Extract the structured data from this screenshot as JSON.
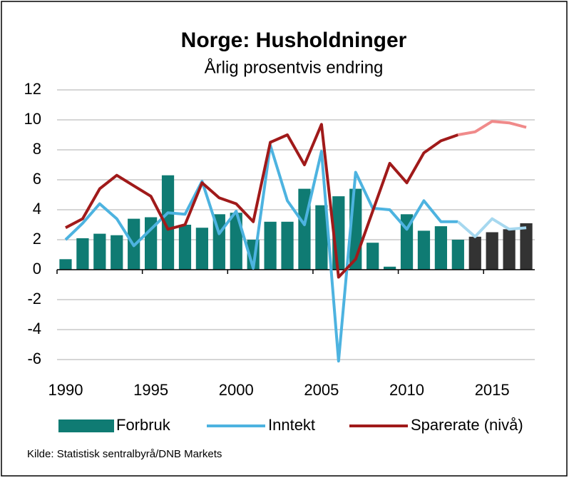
{
  "chart_data": {
    "type": "bar_line",
    "title": "Norge: Husholdninger",
    "subtitle": "Årlig prosentvis endring",
    "source": "Kilde: Statistisk sentralbyrå/DNB  Markets",
    "x": [
      1990,
      1991,
      1992,
      1993,
      1994,
      1995,
      1996,
      1997,
      1998,
      1999,
      2000,
      2001,
      2002,
      2003,
      2004,
      2005,
      2006,
      2007,
      2008,
      2009,
      2010,
      2011,
      2012,
      2013,
      2014,
      2015,
      2016,
      2017
    ],
    "xticks": [
      1990,
      1995,
      2000,
      2005,
      2010,
      2015
    ],
    "ylim": [
      -6,
      12
    ],
    "yticks": [
      -6,
      -4,
      -2,
      0,
      2,
      4,
      6,
      8,
      10,
      12
    ],
    "grid": true,
    "legend": "bottom",
    "series": [
      {
        "name": "Forbruk",
        "kind": "bar",
        "color": "#0f7b73",
        "colors": [
          "#0f7b73",
          "#0f7b73",
          "#0f7b73",
          "#0f7b73",
          "#0f7b73",
          "#0f7b73",
          "#0f7b73",
          "#0f7b73",
          "#0f7b73",
          "#0f7b73",
          "#0f7b73",
          "#0f7b73",
          "#0f7b73",
          "#0f7b73",
          "#0f7b73",
          "#0f7b73",
          "#0f7b73",
          "#0f7b73",
          "#0f7b73",
          "#0f7b73",
          "#0f7b73",
          "#0f7b73",
          "#0f7b73",
          "#0f7b73",
          "#333333",
          "#333333",
          "#333333",
          "#333333"
        ],
        "values": [
          0.7,
          2.1,
          2.4,
          2.3,
          3.4,
          3.5,
          6.3,
          3.0,
          2.8,
          3.7,
          3.8,
          2.0,
          3.2,
          3.2,
          5.4,
          4.3,
          4.9,
          5.4,
          1.8,
          0.2,
          3.7,
          2.6,
          2.9,
          2.0,
          2.2,
          2.5,
          2.7,
          3.1
        ]
      },
      {
        "name": "Inntekt",
        "kind": "line",
        "color": "#4db3e0",
        "colors": [
          "#4db3e0",
          "#4db3e0",
          "#4db3e0",
          "#4db3e0",
          "#4db3e0",
          "#4db3e0",
          "#4db3e0",
          "#4db3e0",
          "#4db3e0",
          "#4db3e0",
          "#4db3e0",
          "#4db3e0",
          "#4db3e0",
          "#4db3e0",
          "#4db3e0",
          "#4db3e0",
          "#4db3e0",
          "#4db3e0",
          "#4db3e0",
          "#4db3e0",
          "#4db3e0",
          "#4db3e0",
          "#4db3e0",
          "#4db3e0",
          "#a6d8ef",
          "#a6d8ef",
          "#a6d8ef",
          "#a6d8ef"
        ],
        "values": [
          2.0,
          3.1,
          4.4,
          3.4,
          1.6,
          2.7,
          3.8,
          3.7,
          5.9,
          2.4,
          3.9,
          0.1,
          8.3,
          4.6,
          3.0,
          7.9,
          -6.1,
          6.5,
          4.1,
          4.0,
          2.7,
          4.6,
          3.2,
          3.2,
          2.2,
          3.4,
          2.7,
          2.8
        ]
      },
      {
        "name": "Sparerate (nivå)",
        "kind": "line",
        "color": "#a01a1a",
        "colors": [
          "#a01a1a",
          "#a01a1a",
          "#a01a1a",
          "#a01a1a",
          "#a01a1a",
          "#a01a1a",
          "#a01a1a",
          "#a01a1a",
          "#a01a1a",
          "#a01a1a",
          "#a01a1a",
          "#a01a1a",
          "#a01a1a",
          "#a01a1a",
          "#a01a1a",
          "#a01a1a",
          "#a01a1a",
          "#a01a1a",
          "#a01a1a",
          "#a01a1a",
          "#a01a1a",
          "#a01a1a",
          "#a01a1a",
          "#a01a1a",
          "#f08a8a",
          "#f08a8a",
          "#f08a8a",
          "#f08a8a"
        ],
        "values": [
          2.8,
          3.4,
          5.4,
          6.3,
          5.6,
          4.9,
          2.7,
          3.0,
          5.8,
          4.8,
          4.4,
          3.2,
          8.5,
          9.0,
          7.0,
          9.7,
          -0.5,
          0.7,
          3.9,
          7.1,
          5.8,
          7.8,
          8.6,
          9.0,
          9.2,
          9.9,
          9.8,
          9.5
        ]
      }
    ]
  }
}
